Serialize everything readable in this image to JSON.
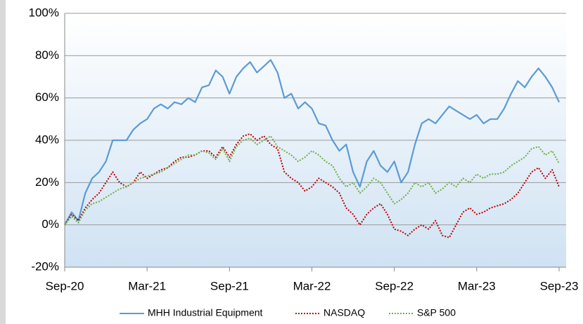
{
  "chart_data": {
    "type": "line",
    "categories": [
      "Sep-20",
      null,
      null,
      null,
      null,
      null,
      null,
      null,
      null,
      null,
      null,
      null,
      "Mar-21",
      null,
      null,
      null,
      null,
      null,
      null,
      null,
      null,
      null,
      null,
      null,
      "Sep-21",
      null,
      null,
      null,
      null,
      null,
      null,
      null,
      null,
      null,
      null,
      null,
      "Mar-22",
      null,
      null,
      null,
      null,
      null,
      null,
      null,
      null,
      null,
      null,
      null,
      "Sep-22",
      null,
      null,
      null,
      null,
      null,
      null,
      null,
      null,
      null,
      null,
      null,
      "Mar-23",
      null,
      null,
      null,
      null,
      null,
      null,
      null,
      null,
      null,
      null,
      null,
      "Sep-23"
    ],
    "series": [
      {
        "name": "MHH Industrial Equipment",
        "color": "#5b9bd5",
        "style": "solid",
        "values": [
          0,
          6,
          2,
          15,
          22,
          25,
          30,
          40,
          40,
          40,
          45,
          48,
          50,
          55,
          57,
          55,
          58,
          57,
          60,
          58,
          65,
          66,
          73,
          70,
          62,
          70,
          74,
          77,
          72,
          75,
          78,
          72,
          60,
          62,
          55,
          58,
          55,
          48,
          47,
          40,
          35,
          38,
          25,
          18,
          30,
          35,
          28,
          25,
          30,
          20,
          25,
          38,
          48,
          50,
          48,
          52,
          56,
          54,
          52,
          50,
          52,
          48,
          50,
          50,
          55,
          62,
          68,
          65,
          70,
          74,
          70,
          65,
          58
        ]
      },
      {
        "name": "NASDAQ",
        "color": "#c00000",
        "style": "dotted",
        "values": [
          0,
          5,
          2,
          8,
          12,
          15,
          20,
          25,
          20,
          18,
          20,
          25,
          22,
          24,
          26,
          27,
          30,
          32,
          32,
          33,
          35,
          35,
          32,
          37,
          32,
          38,
          42,
          43,
          40,
          42,
          38,
          36,
          25,
          22,
          20,
          16,
          18,
          22,
          20,
          18,
          15,
          8,
          5,
          0,
          5,
          8,
          10,
          5,
          -2,
          -3,
          -5,
          -2,
          0,
          -2,
          2,
          -5,
          -6,
          0,
          6,
          8,
          5,
          6,
          8,
          9,
          10,
          12,
          15,
          20,
          25,
          27,
          22,
          26,
          18
        ]
      },
      {
        "name": "S&P 500",
        "color": "#70ad47",
        "style": "dotted",
        "values": [
          0,
          4,
          1,
          7,
          10,
          11,
          13,
          15,
          17,
          18,
          20,
          22,
          23,
          24,
          25,
          27,
          29,
          31,
          33,
          33,
          35,
          34,
          31,
          36,
          30,
          37,
          40,
          41,
          38,
          40,
          42,
          37,
          35,
          33,
          30,
          32,
          35,
          33,
          30,
          28,
          22,
          18,
          20,
          15,
          18,
          22,
          20,
          15,
          10,
          12,
          15,
          20,
          18,
          20,
          15,
          17,
          20,
          18,
          22,
          20,
          24,
          22,
          24,
          24,
          25,
          28,
          30,
          32,
          36,
          37,
          33,
          35,
          29
        ]
      }
    ],
    "ylim": [
      -20,
      100
    ],
    "yticks": [
      {
        "value": -20,
        "label": "-20%"
      },
      {
        "value": 0,
        "label": "0%"
      },
      {
        "value": 20,
        "label": "20%"
      },
      {
        "value": 40,
        "label": "40%"
      },
      {
        "value": 60,
        "label": "60%"
      },
      {
        "value": 80,
        "label": "80%"
      },
      {
        "value": 100,
        "label": "100%"
      }
    ],
    "grid": true,
    "legend": "bottom"
  }
}
